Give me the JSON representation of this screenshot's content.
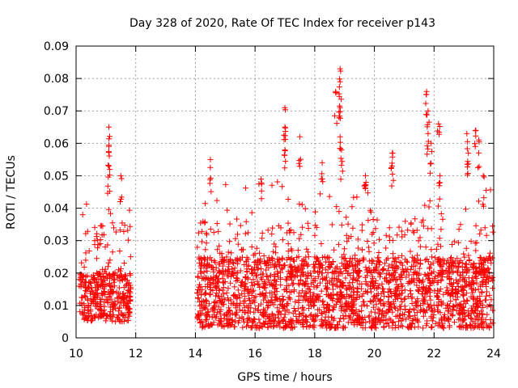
{
  "chart_data": {
    "type": "scatter",
    "title": "Day 328 of 2020, Rate Of TEC Index for receiver p143",
    "xlabel": "GPS time / hours",
    "ylabel": "ROTI / TECUs",
    "xlim": [
      10,
      24
    ],
    "ylim": [
      0,
      0.09
    ],
    "xticks": [
      10,
      12,
      14,
      16,
      18,
      20,
      22,
      24
    ],
    "xtick_labels": [
      "10",
      "12",
      "14",
      "16",
      "18",
      "20",
      "22",
      "24"
    ],
    "yticks": [
      0,
      0.01,
      0.02,
      0.03,
      0.04,
      0.05,
      0.06,
      0.07,
      0.08,
      0.09
    ],
    "ytick_labels": [
      "0",
      "0.01",
      "0.02",
      "0.03",
      "0.04",
      "0.05",
      "0.06",
      "0.07",
      "0.08",
      "0.09"
    ],
    "grid": true,
    "marker": "+",
    "color": "#ff0000",
    "series": [
      {
        "name": "ROTI",
        "density_profile": [
          {
            "x_range": [
              10.1,
              11.85
            ],
            "baseline_range": [
              0.005,
              0.02
            ],
            "spread_max": 0.045,
            "density": "dense"
          },
          {
            "x_range": [
              14.05,
              24.0
            ],
            "baseline_range": [
              0.003,
              0.025
            ],
            "spread_max": 0.05,
            "density": "dense"
          }
        ],
        "gap": [
          11.85,
          14.05
        ],
        "notable_points": [
          {
            "x": 11.1,
            "y": 0.065
          },
          {
            "x": 11.1,
            "y": 0.059
          },
          {
            "x": 11.1,
            "y": 0.053
          },
          {
            "x": 11.5,
            "y": 0.05
          },
          {
            "x": 14.5,
            "y": 0.055
          },
          {
            "x": 16.2,
            "y": 0.049
          },
          {
            "x": 17.0,
            "y": 0.071
          },
          {
            "x": 17.0,
            "y": 0.065
          },
          {
            "x": 17.0,
            "y": 0.058
          },
          {
            "x": 17.5,
            "y": 0.062
          },
          {
            "x": 18.25,
            "y": 0.054
          },
          {
            "x": 18.7,
            "y": 0.076
          },
          {
            "x": 18.85,
            "y": 0.083
          },
          {
            "x": 18.85,
            "y": 0.079
          },
          {
            "x": 18.85,
            "y": 0.071
          },
          {
            "x": 18.85,
            "y": 0.062
          },
          {
            "x": 18.9,
            "y": 0.058
          },
          {
            "x": 19.7,
            "y": 0.05
          },
          {
            "x": 20.6,
            "y": 0.057
          },
          {
            "x": 20.6,
            "y": 0.053
          },
          {
            "x": 21.75,
            "y": 0.076
          },
          {
            "x": 21.8,
            "y": 0.07
          },
          {
            "x": 21.8,
            "y": 0.063
          },
          {
            "x": 21.9,
            "y": 0.06
          },
          {
            "x": 22.15,
            "y": 0.066
          },
          {
            "x": 22.2,
            "y": 0.05
          },
          {
            "x": 23.1,
            "y": 0.063
          },
          {
            "x": 23.15,
            "y": 0.057
          },
          {
            "x": 23.4,
            "y": 0.064
          },
          {
            "x": 23.5,
            "y": 0.061
          },
          {
            "x": 23.65,
            "y": 0.05
          }
        ]
      }
    ]
  }
}
